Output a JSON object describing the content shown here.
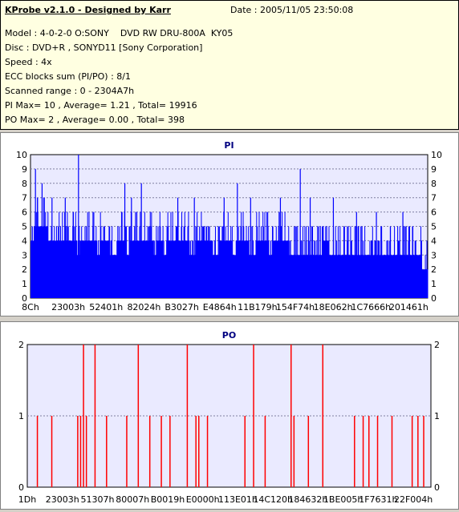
{
  "header": {
    "title": "KProbe v2.1.0 - Designed by Karr",
    "date": "Date : 2005/11/05 23:50:08",
    "lines": [
      "Model : 4-0-2-0 O:SONY    DVD RW DRU-800A  KY05",
      "Disc : DVD+R , SONYD11 [Sony Corporation]",
      "Speed : 4x",
      "ECC blocks sum (PI/PO) : 8/1",
      "Scanned range : 0 - 2304A7h",
      "PI Max= 10 , Average= 1.21 , Total= 19916",
      "PO Max= 2 , Average= 0.00 , Total= 398"
    ]
  },
  "chart_data": [
    {
      "type": "bar",
      "title": "PI",
      "color": "#0000ff",
      "ylim": [
        0,
        10
      ],
      "yticks": [
        "0",
        "1",
        "2",
        "3",
        "4",
        "5",
        "6",
        "7",
        "8",
        "9",
        "10"
      ],
      "xtick_labels": [
        "8Ch",
        "23003h",
        "52401h",
        "82024h",
        "B3027h",
        "E4864h",
        "11B179h",
        "154F74h",
        "18E062h",
        "1C7666h",
        "201461h"
      ],
      "grid": true,
      "baseline": [
        4,
        5,
        5,
        5,
        5,
        4,
        4,
        4,
        4,
        4,
        4,
        4,
        4,
        4,
        3,
        4,
        4,
        4,
        4,
        4,
        3,
        4,
        4,
        4,
        3,
        3,
        4,
        4,
        4,
        3,
        4,
        4,
        4,
        4,
        4,
        4,
        4,
        3,
        4,
        4,
        3,
        4,
        4,
        4,
        4,
        4,
        4,
        4,
        3,
        3,
        4,
        4,
        4,
        4,
        4,
        3,
        3,
        4,
        4,
        4,
        4,
        3,
        4,
        4,
        4,
        4,
        3,
        3,
        4,
        4,
        4,
        4,
        3,
        4,
        4,
        4,
        4,
        4,
        3,
        3,
        3,
        3,
        3,
        3,
        3,
        3,
        3,
        3,
        4,
        4,
        3,
        3,
        3,
        3,
        3,
        3,
        3,
        3,
        3,
        3,
        3,
        3,
        3,
        3,
        3,
        3,
        3,
        3,
        3,
        3,
        3,
        3,
        3,
        3,
        3,
        3,
        3,
        3,
        2,
        2
      ],
      "spikes": [
        [
          1,
          9
        ],
        [
          3,
          8
        ],
        [
          6,
          7
        ],
        [
          10,
          7
        ],
        [
          14,
          10
        ],
        [
          28,
          8
        ],
        [
          30,
          7
        ],
        [
          33,
          8
        ],
        [
          44,
          7
        ],
        [
          49,
          7
        ],
        [
          58,
          7
        ],
        [
          62,
          8
        ],
        [
          66,
          7
        ],
        [
          75,
          7
        ],
        [
          81,
          9
        ],
        [
          84,
          7
        ],
        [
          91,
          7
        ],
        [
          98,
          6
        ],
        [
          104,
          6
        ],
        [
          112,
          6
        ],
        [
          115,
          5
        ]
      ]
    },
    {
      "type": "bar",
      "title": "PO",
      "color": "#ff0000",
      "ylim": [
        0,
        2
      ],
      "yticks": [
        "0",
        "1",
        "2"
      ],
      "xtick_labels": [
        "1Dh",
        "23003h",
        "51307h",
        "80007h",
        "B0019h",
        "E0000h",
        "113E01h",
        "14C120h",
        "184632h",
        "1BE005h",
        "1F7631h",
        "22F004h"
      ],
      "grid": true,
      "events": [
        [
          3,
          1
        ],
        [
          8,
          1
        ],
        [
          17,
          1
        ],
        [
          18,
          1
        ],
        [
          19,
          2
        ],
        [
          20,
          1
        ],
        [
          23,
          2
        ],
        [
          27,
          1
        ],
        [
          34,
          1
        ],
        [
          38,
          2
        ],
        [
          42,
          1
        ],
        [
          46,
          1
        ],
        [
          49,
          1
        ],
        [
          55,
          2
        ],
        [
          58,
          1
        ],
        [
          59,
          1
        ],
        [
          62,
          1
        ],
        [
          75,
          1
        ],
        [
          78,
          2
        ],
        [
          82,
          1
        ],
        [
          91,
          2
        ],
        [
          92,
          1
        ],
        [
          97,
          1
        ],
        [
          102,
          2
        ],
        [
          113,
          1
        ],
        [
          116,
          1
        ],
        [
          118,
          1
        ],
        [
          121,
          1
        ],
        [
          126,
          1
        ],
        [
          133,
          1
        ],
        [
          135,
          1
        ],
        [
          137,
          1
        ]
      ]
    }
  ]
}
